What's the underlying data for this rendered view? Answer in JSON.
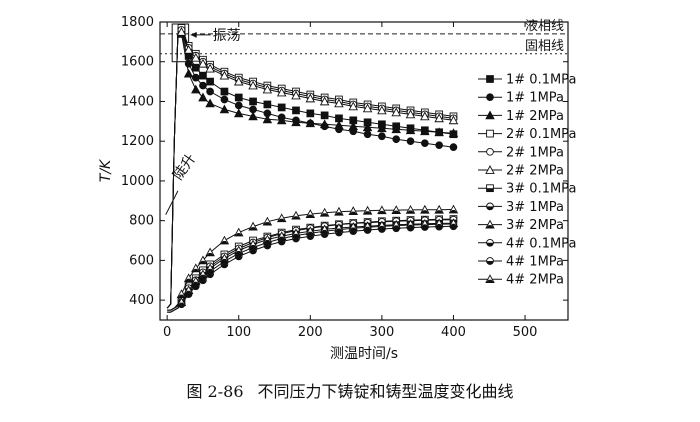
{
  "figure": {
    "caption_number": "图 2-86",
    "caption_text": "不同压力下铸锭和铸型温度变化曲线"
  },
  "chart_data": {
    "type": "line",
    "title": "",
    "xlabel": "测温时间/s",
    "ylabel": "T/K",
    "xlim": [
      -10,
      560
    ],
    "ylim": [
      300,
      1800
    ],
    "xticks": [
      0,
      100,
      200,
      300,
      400,
      500
    ],
    "yticks": [
      400,
      600,
      800,
      1000,
      1200,
      1400,
      1600,
      1800
    ],
    "grid": false,
    "legend_position": "right",
    "reference_lines": [
      {
        "label": "液相线",
        "y": 1740,
        "style": "dashed"
      },
      {
        "label": "固相线",
        "y": 1640,
        "style": "dotted"
      }
    ],
    "annotations": [
      {
        "text": "振荡",
        "x": 20,
        "y": 1720
      },
      {
        "text": "陡升",
        "x": 15,
        "y": 1000
      }
    ],
    "x": [
      0,
      5,
      10,
      15,
      20,
      30,
      40,
      50,
      60,
      80,
      100,
      120,
      140,
      160,
      180,
      200,
      220,
      240,
      260,
      280,
      300,
      320,
      340,
      360,
      380,
      400
    ],
    "series": [
      {
        "name": "1# 0.1MPa",
        "marker": "filled-square",
        "values": [
          360,
          380,
          1200,
          1740,
          1760,
          1630,
          1570,
          1530,
          1500,
          1450,
          1420,
          1400,
          1385,
          1370,
          1355,
          1340,
          1330,
          1315,
          1305,
          1295,
          1285,
          1275,
          1265,
          1255,
          1245,
          1235
        ]
      },
      {
        "name": "1# 1MPa",
        "marker": "filled-circle",
        "values": [
          360,
          380,
          1200,
          1740,
          1750,
          1590,
          1520,
          1480,
          1450,
          1410,
          1380,
          1360,
          1340,
          1320,
          1305,
          1290,
          1275,
          1260,
          1250,
          1235,
          1225,
          1210,
          1200,
          1190,
          1180,
          1170
        ]
      },
      {
        "name": "1# 2MPa",
        "marker": "filled-triangle",
        "values": [
          360,
          380,
          1200,
          1740,
          1740,
          1540,
          1460,
          1420,
          1390,
          1360,
          1340,
          1325,
          1310,
          1305,
          1295,
          1290,
          1285,
          1280,
          1275,
          1270,
          1265,
          1260,
          1255,
          1250,
          1245,
          1240
        ]
      },
      {
        "name": "2# 0.1MPa",
        "marker": "open-square",
        "values": [
          360,
          380,
          1200,
          1740,
          1770,
          1680,
          1640,
          1610,
          1585,
          1550,
          1520,
          1500,
          1480,
          1465,
          1450,
          1435,
          1420,
          1410,
          1395,
          1385,
          1375,
          1365,
          1355,
          1345,
          1335,
          1325
        ]
      },
      {
        "name": "2# 1MPa",
        "marker": "open-circle",
        "values": [
          360,
          380,
          1200,
          1740,
          1760,
          1670,
          1630,
          1600,
          1575,
          1540,
          1510,
          1490,
          1470,
          1455,
          1440,
          1425,
          1410,
          1400,
          1385,
          1375,
          1365,
          1355,
          1345,
          1335,
          1325,
          1315
        ]
      },
      {
        "name": "2# 2MPa",
        "marker": "open-triangle",
        "values": [
          360,
          380,
          1200,
          1740,
          1750,
          1660,
          1620,
          1590,
          1565,
          1530,
          1500,
          1480,
          1460,
          1445,
          1430,
          1415,
          1400,
          1390,
          1375,
          1365,
          1355,
          1345,
          1335,
          1325,
          1315,
          1305
        ]
      },
      {
        "name": "3# 0.1MPa",
        "marker": "half-square",
        "values": [
          350,
          350,
          360,
          370,
          400,
          470,
          510,
          550,
          580,
          630,
          670,
          700,
          720,
          740,
          755,
          765,
          775,
          782,
          788,
          793,
          797,
          800,
          803,
          805,
          807,
          808
        ]
      },
      {
        "name": "3# 1MPa",
        "marker": "half-circle",
        "values": [
          350,
          350,
          360,
          370,
          400,
          460,
          500,
          540,
          570,
          620,
          660,
          690,
          715,
          735,
          750,
          762,
          772,
          780,
          786,
          790,
          794,
          797,
          800,
          802,
          804,
          805
        ]
      },
      {
        "name": "3# 2MPa",
        "marker": "half-triangle",
        "values": [
          350,
          350,
          360,
          380,
          430,
          510,
          560,
          600,
          640,
          700,
          740,
          770,
          795,
          812,
          825,
          833,
          840,
          845,
          848,
          850,
          852,
          853,
          854,
          855,
          855,
          856
        ]
      },
      {
        "name": "4# 0.1MPa",
        "marker": "half-circle",
        "values": [
          340,
          340,
          350,
          360,
          380,
          430,
          470,
          500,
          530,
          580,
          620,
          650,
          675,
          695,
          710,
          722,
          732,
          740,
          747,
          753,
          758,
          762,
          765,
          768,
          770,
          772
        ]
      },
      {
        "name": "4# 1MPa",
        "marker": "half-circle",
        "values": [
          340,
          340,
          350,
          360,
          380,
          440,
          480,
          515,
          545,
          595,
          635,
          665,
          690,
          710,
          725,
          737,
          747,
          755,
          762,
          767,
          771,
          775,
          778,
          780,
          782,
          783
        ]
      },
      {
        "name": "4# 2MPa",
        "marker": "half-triangle",
        "values": [
          340,
          340,
          350,
          360,
          390,
          450,
          495,
          530,
          560,
          610,
          650,
          680,
          705,
          722,
          736,
          747,
          756,
          763,
          768,
          772,
          776,
          779,
          782,
          784,
          786,
          787
        ]
      }
    ]
  }
}
